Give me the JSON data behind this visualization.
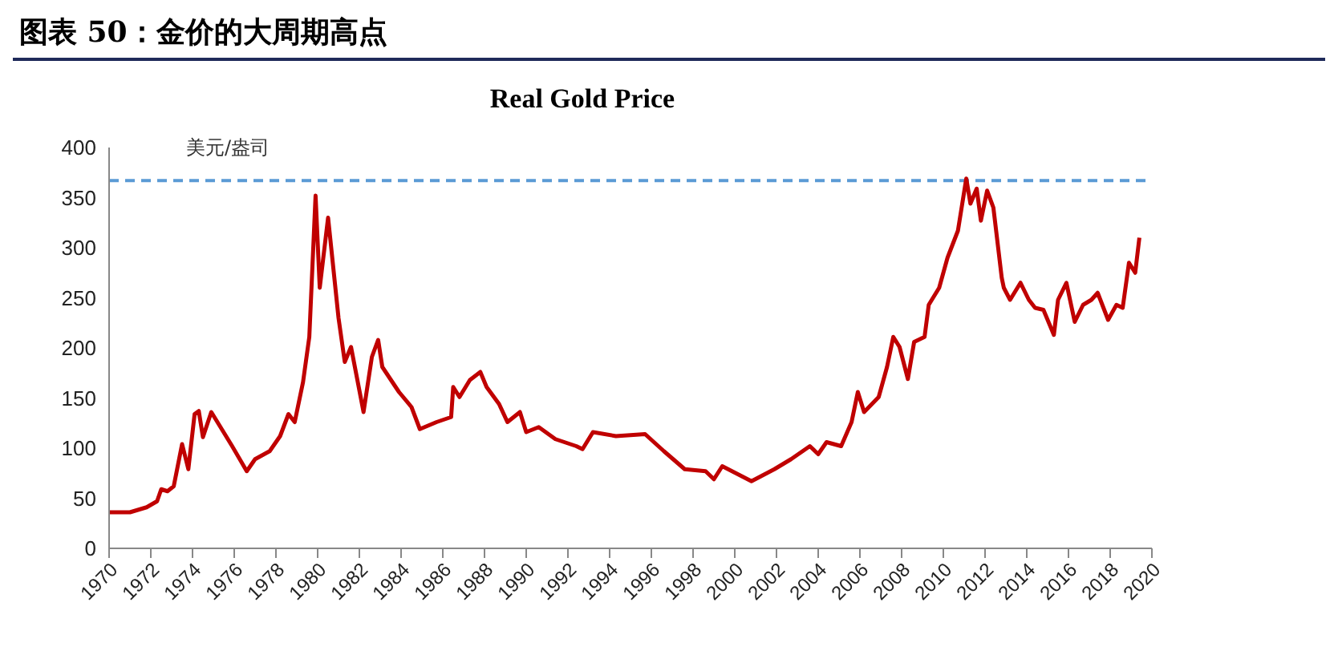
{
  "chart_data": {
    "type": "line",
    "title": "图表 50：金价的大周期高点",
    "subtitle": "Real Gold Price",
    "ylabel": "美元/盎司",
    "xlim": [
      1970,
      2020
    ],
    "xticks": [
      1970,
      1972,
      1974,
      1976,
      1978,
      1980,
      1982,
      1984,
      1986,
      1988,
      1990,
      1992,
      1994,
      1996,
      1998,
      2000,
      2002,
      2004,
      2006,
      2008,
      2010,
      2012,
      2014,
      2016,
      2018,
      2020
    ],
    "ylim": [
      0,
      400
    ],
    "yticks": [
      0,
      50,
      100,
      150,
      200,
      250,
      300,
      350,
      400
    ],
    "marker": "none",
    "line_style": "solid",
    "x": [
      1970.0,
      1971.0,
      1971.8,
      1972.3,
      1972.5,
      1972.8,
      1973.1,
      1973.5,
      1973.8,
      1974.1,
      1974.3,
      1974.5,
      1974.9,
      1975.4,
      1975.9,
      1976.6,
      1977.0,
      1977.7,
      1978.2,
      1978.6,
      1978.9,
      1979.3,
      1979.6,
      1979.9,
      1980.1,
      1980.5,
      1981.0,
      1981.3,
      1981.6,
      1982.2,
      1982.6,
      1982.9,
      1983.1,
      1983.9,
      1984.5,
      1984.9,
      1985.7,
      1986.4,
      1986.5,
      1986.8,
      1987.3,
      1987.8,
      1988.1,
      1988.7,
      1989.1,
      1989.7,
      1990.0,
      1990.6,
      1991.4,
      1992.4,
      1992.7,
      1993.2,
      1994.3,
      1995.7,
      1996.6,
      1997.6,
      1998.6,
      1999.0,
      1999.4,
      2000.8,
      2001.9,
      2002.7,
      2003.6,
      2004.0,
      2004.4,
      2005.1,
      2005.6,
      2005.9,
      2006.2,
      2006.9,
      2007.3,
      2007.6,
      2007.9,
      2008.3,
      2008.6,
      2009.1,
      2009.3,
      2009.8,
      2010.2,
      2010.7,
      2011.1,
      2011.3,
      2011.6,
      2011.8,
      2012.1,
      2012.4,
      2012.8,
      2012.9,
      2013.2,
      2013.7,
      2014.1,
      2014.4,
      2014.8,
      2015.3,
      2015.5,
      2015.9,
      2016.3,
      2016.7,
      2017.1,
      2017.4,
      2017.9,
      2018.3,
      2018.6,
      2018.9,
      2019.2,
      2019.4
    ],
    "series": [
      {
        "color": "#c00000",
        "values": [
          36,
          36,
          41,
          47,
          59,
          57,
          62,
          104,
          79,
          134,
          137,
          111,
          136,
          119,
          102,
          77,
          89,
          97,
          112,
          134,
          126,
          166,
          211,
          352,
          260,
          330,
          230,
          186,
          201,
          136,
          191,
          208,
          181,
          156,
          141,
          119,
          126,
          131,
          161,
          151,
          168,
          176,
          161,
          144,
          126,
          136,
          116,
          121,
          109,
          102,
          99,
          116,
          112,
          114,
          97,
          79,
          77,
          69,
          82,
          67,
          79,
          89,
          102,
          94,
          106,
          102,
          126,
          156,
          136,
          151,
          181,
          211,
          201,
          169,
          206,
          211,
          243,
          260,
          290,
          317,
          369,
          344,
          359,
          327,
          357,
          340,
          270,
          260,
          248,
          265,
          248,
          240,
          238,
          213,
          248,
          265,
          226,
          243,
          248,
          255,
          228,
          243,
          240,
          285,
          275,
          310
        ]
      }
    ],
    "ref_lines": [
      {
        "axis": "y",
        "value": 367,
        "color": "#5b9bd5",
        "line_style": "dashed"
      }
    ]
  }
}
